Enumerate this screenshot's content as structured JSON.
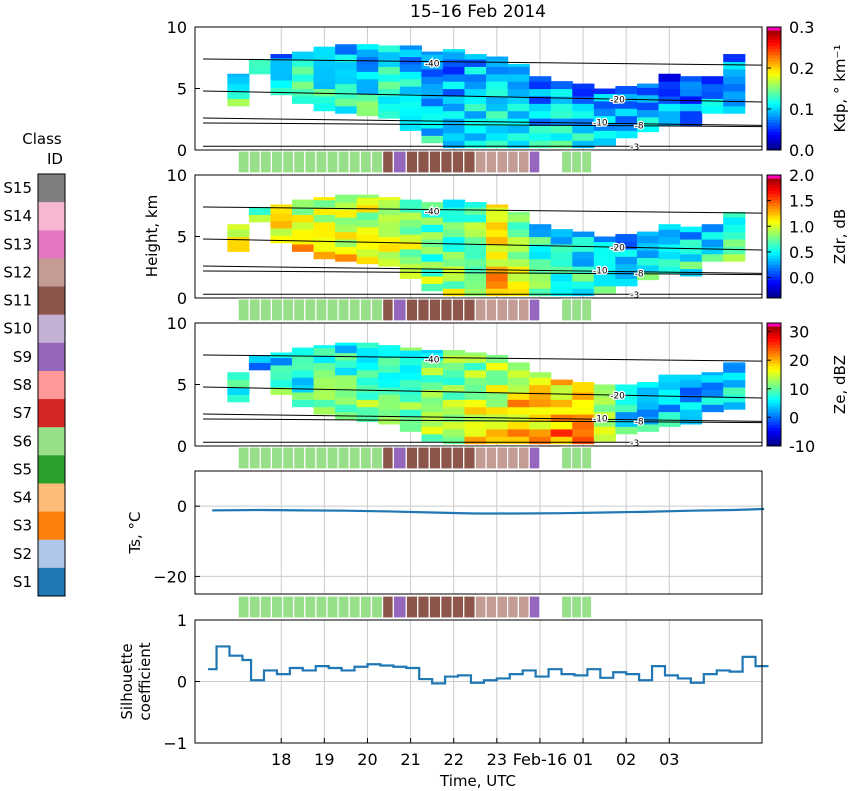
{
  "title": "15–16 Feb 2014",
  "xlabel": "Time, UTC",
  "x_ticks": [
    "18",
    "19",
    "20",
    "21",
    "22",
    "23",
    "Feb-16",
    "01",
    "02",
    "03"
  ],
  "shared_ylabel": "Height, km",
  "legend": {
    "title_line1": "Class",
    "title_line2": "ID",
    "classes": [
      {
        "id": "S15",
        "color": "#7f7f7f"
      },
      {
        "id": "S14",
        "color": "#f7b6d2"
      },
      {
        "id": "S13",
        "color": "#e377c2"
      },
      {
        "id": "S12",
        "color": "#c49c94"
      },
      {
        "id": "S11",
        "color": "#8c564b"
      },
      {
        "id": "S10",
        "color": "#c5b0d5"
      },
      {
        "id": "S9",
        "color": "#9467bd"
      },
      {
        "id": "S8",
        "color": "#ff9896"
      },
      {
        "id": "S7",
        "color": "#d62728"
      },
      {
        "id": "S6",
        "color": "#98df8a"
      },
      {
        "id": "S5",
        "color": "#2ca02c"
      },
      {
        "id": "S4",
        "color": "#ffbb78"
      },
      {
        "id": "S3",
        "color": "#ff7f0e"
      },
      {
        "id": "S2",
        "color": "#aec7e8"
      },
      {
        "id": "S1",
        "color": "#1f77b4"
      }
    ]
  },
  "chart_data": [
    {
      "type": "heatmap",
      "variable": "Kdp",
      "ylim": [
        0,
        10
      ],
      "y_ticks": [
        "0",
        "5",
        "10"
      ],
      "colorbar_label": "Kdp, ° km⁻¹",
      "colorbar_ticks": [
        "0.0",
        "0.1",
        "0.2",
        "0.3"
      ],
      "colorbar_range": [
        0,
        0.3
      ],
      "isotherm_labels": [
        "-40",
        "-20",
        "-10",
        "-8",
        "-3"
      ],
      "profiles": [
        {
          "t": 0.0,
          "bottom": 3.6,
          "top": 6.2,
          "level": 0.12
        },
        {
          "t": 0.5,
          "bottom": 6.2,
          "top": 7.4,
          "level": 0.1
        },
        {
          "t": 1.0,
          "bottom": 4.5,
          "top": 7.8,
          "level": 0.1
        },
        {
          "t": 1.5,
          "bottom": 3.8,
          "top": 8.0,
          "level": 0.12
        },
        {
          "t": 2.0,
          "bottom": 3.2,
          "top": 8.4,
          "level": 0.12
        },
        {
          "t": 2.5,
          "bottom": 3.0,
          "top": 8.6,
          "level": 0.11
        },
        {
          "t": 3.0,
          "bottom": 2.8,
          "top": 8.6,
          "level": 0.11
        },
        {
          "t": 3.5,
          "bottom": 2.6,
          "top": 8.5,
          "level": 0.11
        },
        {
          "t": 4.0,
          "bottom": 1.6,
          "top": 8.5,
          "level": 0.1
        },
        {
          "t": 4.5,
          "bottom": 0.6,
          "top": 8.0,
          "level": 0.09
        },
        {
          "t": 5.0,
          "bottom": 0.2,
          "top": 8.2,
          "level": 0.09
        },
        {
          "t": 5.5,
          "bottom": 0.2,
          "top": 7.8,
          "level": 0.1
        },
        {
          "t": 6.0,
          "bottom": 0.2,
          "top": 7.6,
          "level": 0.1
        },
        {
          "t": 6.5,
          "bottom": 0.2,
          "top": 7.0,
          "level": 0.1
        },
        {
          "t": 7.0,
          "bottom": 0.2,
          "top": 6.0,
          "level": 0.09
        },
        {
          "t": 7.5,
          "bottom": 0.2,
          "top": 5.6,
          "level": 0.1
        },
        {
          "t": 8.0,
          "bottom": 0.2,
          "top": 5.4,
          "level": 0.09
        },
        {
          "t": 8.5,
          "bottom": 0.4,
          "top": 5.0,
          "level": 0.09
        },
        {
          "t": 9.0,
          "bottom": 1.0,
          "top": 5.2,
          "level": 0.08
        },
        {
          "t": 9.5,
          "bottom": 1.5,
          "top": 5.4,
          "level": 0.08
        },
        {
          "t": 10.0,
          "bottom": 2.0,
          "top": 6.2,
          "level": 0.07
        },
        {
          "t": 10.5,
          "bottom": 2.0,
          "top": 6.0,
          "level": 0.07
        },
        {
          "t": 11.0,
          "bottom": 3.0,
          "top": 6.0,
          "level": 0.08
        },
        {
          "t": 11.5,
          "bottom": 3.0,
          "top": 7.8,
          "level": 0.09
        }
      ]
    },
    {
      "type": "heatmap",
      "variable": "Zdr",
      "ylim": [
        0,
        10
      ],
      "y_ticks": [
        "0",
        "5",
        "10"
      ],
      "colorbar_label": "Zdr, dB",
      "colorbar_ticks": [
        "0.0",
        "0.5",
        "1.0",
        "1.5",
        "2.0"
      ],
      "colorbar_range": [
        -0.4,
        2.0
      ],
      "isotherm_labels": [
        "-40",
        "-20",
        "-10",
        "-8",
        "-3"
      ],
      "profiles": [
        {
          "t": 0.0,
          "bottom": 3.8,
          "top": 6.0,
          "level": 0.95
        },
        {
          "t": 0.5,
          "bottom": 6.2,
          "top": 7.4,
          "level": 0.55
        },
        {
          "t": 1.0,
          "bottom": 4.5,
          "top": 7.6,
          "level": 1.05
        },
        {
          "t": 1.5,
          "bottom": 3.8,
          "top": 8.0,
          "level": 1.05
        },
        {
          "t": 2.0,
          "bottom": 3.2,
          "top": 8.2,
          "level": 1.05
        },
        {
          "t": 2.5,
          "bottom": 3.0,
          "top": 8.4,
          "level": 1.0
        },
        {
          "t": 3.0,
          "bottom": 2.8,
          "top": 8.4,
          "level": 1.0
        },
        {
          "t": 3.5,
          "bottom": 2.6,
          "top": 8.2,
          "level": 0.95
        },
        {
          "t": 4.0,
          "bottom": 1.6,
          "top": 8.0,
          "level": 0.9
        },
        {
          "t": 4.5,
          "bottom": 0.6,
          "top": 7.8,
          "level": 0.7
        },
        {
          "t": 5.0,
          "bottom": 0.2,
          "top": 8.0,
          "level": 0.75
        },
        {
          "t": 5.5,
          "bottom": 0.2,
          "top": 7.8,
          "level": 0.85
        },
        {
          "t": 6.0,
          "bottom": 0.2,
          "top": 7.6,
          "level": 1.1
        },
        {
          "t": 6.5,
          "bottom": 0.2,
          "top": 7.0,
          "level": 0.8
        },
        {
          "t": 7.0,
          "bottom": 0.2,
          "top": 6.0,
          "level": 0.6
        },
        {
          "t": 7.5,
          "bottom": 0.2,
          "top": 5.6,
          "level": 0.55
        },
        {
          "t": 8.0,
          "bottom": 0.2,
          "top": 5.4,
          "level": 0.5
        },
        {
          "t": 8.5,
          "bottom": 0.4,
          "top": 5.0,
          "level": 0.45
        },
        {
          "t": 9.0,
          "bottom": 1.0,
          "top": 5.2,
          "level": 0.4
        },
        {
          "t": 9.5,
          "bottom": 1.5,
          "top": 5.4,
          "level": 0.45
        },
        {
          "t": 10.0,
          "bottom": 2.0,
          "top": 6.0,
          "level": 0.4
        },
        {
          "t": 10.5,
          "bottom": 1.8,
          "top": 5.8,
          "level": 0.45
        },
        {
          "t": 11.0,
          "bottom": 3.0,
          "top": 6.0,
          "level": 0.4
        },
        {
          "t": 11.5,
          "bottom": 3.0,
          "top": 7.0,
          "level": 0.55
        }
      ]
    },
    {
      "type": "heatmap",
      "variable": "Ze",
      "ylim": [
        0,
        10
      ],
      "y_ticks": [
        "0",
        "5",
        "10"
      ],
      "colorbar_label": "Ze, dBZ",
      "colorbar_ticks": [
        "-10",
        "0",
        "10",
        "20",
        "30"
      ],
      "colorbar_range": [
        -10,
        33
      ],
      "isotherm_labels": [
        "-40",
        "-20",
        "-10",
        "-8",
        "-3"
      ],
      "profiles": [
        {
          "t": 0.0,
          "bottom": 3.6,
          "top": 6.0,
          "level": 8
        },
        {
          "t": 0.5,
          "bottom": 6.2,
          "top": 7.4,
          "level": 0
        },
        {
          "t": 1.0,
          "bottom": 4.2,
          "top": 7.6,
          "level": 6
        },
        {
          "t": 1.5,
          "bottom": 3.2,
          "top": 8.0,
          "level": 7
        },
        {
          "t": 2.0,
          "bottom": 2.6,
          "top": 8.2,
          "level": 8
        },
        {
          "t": 2.5,
          "bottom": 2.2,
          "top": 8.4,
          "level": 9
        },
        {
          "t": 3.0,
          "bottom": 2.0,
          "top": 8.4,
          "level": 10
        },
        {
          "t": 3.5,
          "bottom": 1.8,
          "top": 8.2,
          "level": 10
        },
        {
          "t": 4.0,
          "bottom": 1.2,
          "top": 8.0,
          "level": 10
        },
        {
          "t": 4.5,
          "bottom": 0.4,
          "top": 7.8,
          "level": 11
        },
        {
          "t": 5.0,
          "bottom": 0.2,
          "top": 7.8,
          "level": 12
        },
        {
          "t": 5.5,
          "bottom": 0.2,
          "top": 7.6,
          "level": 14
        },
        {
          "t": 6.0,
          "bottom": 0.2,
          "top": 7.4,
          "level": 16
        },
        {
          "t": 6.5,
          "bottom": 0.2,
          "top": 6.8,
          "level": 18
        },
        {
          "t": 7.0,
          "bottom": 0.2,
          "top": 6.0,
          "level": 17
        },
        {
          "t": 7.5,
          "bottom": 0.2,
          "top": 5.4,
          "level": 20
        },
        {
          "t": 8.0,
          "bottom": 0.2,
          "top": 5.2,
          "level": 18
        },
        {
          "t": 8.5,
          "bottom": 0.4,
          "top": 5.0,
          "level": 10
        },
        {
          "t": 9.0,
          "bottom": 1.0,
          "top": 5.0,
          "level": 5
        },
        {
          "t": 9.5,
          "bottom": 1.2,
          "top": 5.2,
          "level": 4
        },
        {
          "t": 10.0,
          "bottom": 1.6,
          "top": 5.8,
          "level": 3
        },
        {
          "t": 10.5,
          "bottom": 1.8,
          "top": 5.8,
          "level": 3
        },
        {
          "t": 11.0,
          "bottom": 2.8,
          "top": 6.0,
          "level": 2
        },
        {
          "t": 11.5,
          "bottom": 3.0,
          "top": 6.8,
          "level": 5
        }
      ]
    },
    {
      "type": "line",
      "variable": "Ts",
      "ylabel": "Ts, °C",
      "ylim": [
        -25,
        10
      ],
      "y_ticks": [
        "−20",
        "0"
      ],
      "x": [
        -0.6,
        0.5,
        1.5,
        2.5,
        3.5,
        4.5,
        5.5,
        6.5,
        7.5,
        8.5,
        9.5,
        10.5,
        11.5,
        12.2
      ],
      "values": [
        -1.2,
        -1.1,
        -1.2,
        -1.3,
        -1.5,
        -1.8,
        -2.1,
        -2.1,
        -2.0,
        -1.8,
        -1.6,
        -1.3,
        -1.1,
        -0.8
      ]
    },
    {
      "type": "line",
      "variable": "Silhouette coefficient",
      "ylabel_line1": "Silhouette",
      "ylabel_line2": "coefficient",
      "ylim": [
        -1,
        1
      ],
      "y_ticks": [
        "−1",
        "0",
        "1"
      ],
      "step_times": [
        -0.7,
        -0.5,
        -0.2,
        0.1,
        0.3,
        0.6,
        0.9,
        1.2,
        1.5,
        1.8,
        2.1,
        2.4,
        2.7,
        3.0,
        3.3,
        3.6,
        3.9,
        4.2,
        4.5,
        4.8,
        5.1,
        5.4,
        5.7,
        6.0,
        6.3,
        6.6,
        6.9,
        7.2,
        7.5,
        7.8,
        8.1,
        8.4,
        8.7,
        9.0,
        9.3,
        9.6,
        9.9,
        10.2,
        10.5,
        10.8,
        11.1,
        11.4,
        11.7,
        12.0,
        12.3
      ],
      "values": [
        0.2,
        0.57,
        0.42,
        0.35,
        0.02,
        0.18,
        0.12,
        0.22,
        0.18,
        0.25,
        0.22,
        0.18,
        0.24,
        0.28,
        0.26,
        0.24,
        0.22,
        0.04,
        -0.03,
        0.08,
        0.1,
        -0.02,
        0.02,
        0.05,
        0.12,
        0.18,
        0.08,
        0.2,
        0.12,
        0.1,
        0.2,
        0.06,
        0.15,
        0.12,
        0.02,
        0.25,
        0.1,
        0.05,
        -0.02,
        0.12,
        0.18,
        0.16,
        0.4,
        0.25
      ]
    }
  ],
  "class_strips": [
    {
      "start": 0.0,
      "end": 3.35,
      "class": "S6"
    },
    {
      "start": 3.35,
      "end": 3.6,
      "class": "S11"
    },
    {
      "start": 3.6,
      "end": 3.9,
      "class": "S9"
    },
    {
      "start": 3.9,
      "end": 5.5,
      "class": "S11"
    },
    {
      "start": 5.5,
      "end": 6.75,
      "class": "S12"
    },
    {
      "start": 6.75,
      "end": 7.0,
      "class": "S9"
    },
    {
      "start": 7.5,
      "end": 8.2,
      "class": "S6"
    }
  ]
}
